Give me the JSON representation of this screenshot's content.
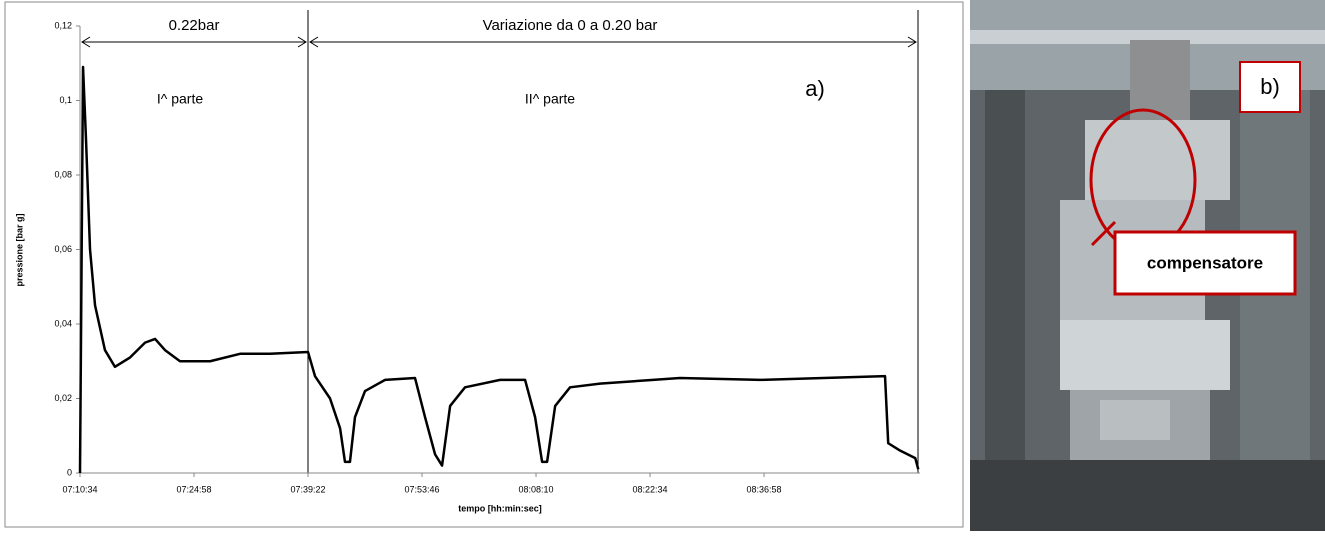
{
  "chart_data": {
    "type": "line",
    "y_label": "pressione [bar g]",
    "x_label": "tempo [hh:min:sec]",
    "annotations": [
      "0.22bar",
      "Variazione da 0 a 0.20 bar",
      "I^  parte",
      "II^  parte",
      "a)"
    ],
    "xlim": [
      "07:10:34",
      "08:56:40"
    ],
    "xticks": [
      "07:10:34",
      "07:24:58",
      "07:39:22",
      "07:53:46",
      "08:08:10",
      "08:22:34",
      "08:36:58"
    ],
    "ylim": [
      0,
      0.12
    ],
    "yticks": [
      0,
      {
        "value": 0.02,
        "label": "0,02"
      },
      {
        "value": 0.04,
        "label": "0,04"
      },
      {
        "value": 0.06,
        "label": "0,06"
      },
      {
        "value": 0.08,
        "label": "0,08"
      },
      {
        "value": 0.1,
        "label": "0,1"
      },
      {
        "value": 0.12,
        "label": "0,12"
      }
    ],
    "grid": false,
    "x": [
      "07:10:34",
      "07:10:57",
      "07:11:19",
      "07:11:50",
      "07:12:28",
      "07:13:43",
      "07:14:59",
      "07:16:53",
      "07:18:47",
      "07:20:03",
      "07:21:18",
      "07:23:12",
      "07:27:00",
      "07:30:47",
      "07:34:34",
      "07:39:22",
      "07:40:15",
      "07:42:09",
      "07:43:25",
      "07:44:02",
      "07:44:40",
      "07:45:18",
      "07:46:34",
      "07:49:06",
      "07:52:53",
      "07:54:09",
      "07:55:25",
      "07:56:18",
      "07:57:19",
      "07:59:12",
      "08:03:38",
      "08:06:47",
      "08:08:03",
      "08:08:56",
      "08:09:34",
      "08:10:35",
      "08:12:28",
      "08:16:15",
      "08:26:21",
      "08:36:28",
      "08:52:15",
      "08:52:39",
      "08:54:10",
      "08:56:04",
      "08:56:27"
    ],
    "series": [
      {
        "color": "#000000",
        "values": [
          0,
          0.109,
          0.09,
          0.06,
          0.045,
          0.033,
          0.0285,
          0.031,
          0.035,
          0.036,
          0.033,
          0.03,
          0.03,
          0.032,
          0.032,
          0.0325,
          0.026,
          0.02,
          0.012,
          0.003,
          0.003,
          0.015,
          0.022,
          0.025,
          0.0255,
          0.015,
          0.005,
          0.002,
          0.018,
          0.023,
          0.025,
          0.025,
          0.015,
          0.003,
          0.003,
          0.018,
          0.023,
          0.024,
          0.0255,
          0.025,
          0.026,
          0.008,
          0.006,
          0.004,
          0.001
        ]
      }
    ]
  },
  "photo": {
    "panel_label": "b)",
    "callout": "compensatore"
  }
}
